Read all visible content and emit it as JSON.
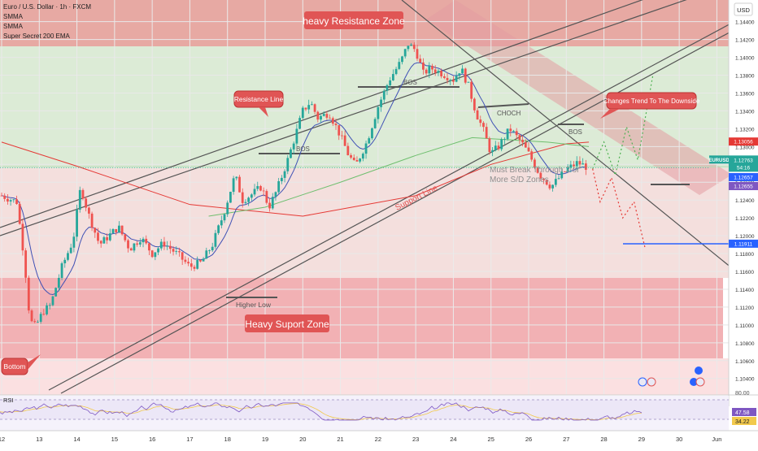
{
  "header": {
    "symbol": "Euro / U.S. Dollar · 1h · FXCM",
    "indicators": [
      "SMMA",
      "SMMA",
      "Super Secret 200 EMA"
    ],
    "currency": "USD"
  },
  "rsi": {
    "label": "RSI",
    "scale": [
      "80.00",
      "47.58",
      "34.22"
    ],
    "values": [
      47.58,
      34.22
    ],
    "colors": {
      "rsi": "#7e57c2",
      "ma": "#f2c94c"
    }
  },
  "annotations": {
    "resistance_zone": "heavy Resistance Zone",
    "support_zone": "Heavy Suport Zone",
    "resistance_line": "Resistance Line",
    "support_line": "Support Line",
    "bottom": "Bottom",
    "higher_low": "Higher Low",
    "bos": "BOS",
    "choch": "CHOCH",
    "trend_change": "Changes Trend To The Downside",
    "must_break_1": "Must Break Through 2 or",
    "must_break_2": "More S/D Zones"
  },
  "price_tags": {
    "ema200": {
      "text": "1.13056",
      "value": 1.13056,
      "color": "#e53935"
    },
    "eurusd_label": "EURUSD",
    "last": {
      "text": "1.12763",
      "value": 1.12763,
      "color": "#26a69a"
    },
    "countdown": "54:16",
    "smma_a": {
      "text": "1.12657",
      "value": 1.12657,
      "color": "#2962ff"
    },
    "smma_b": {
      "text": "1.12655",
      "value": 1.12655,
      "color": "#7e57c2"
    },
    "support_level": {
      "text": "1.11911",
      "value": 1.11911,
      "color": "#2962ff"
    }
  },
  "chart_data": {
    "type": "candlestick",
    "instrument": "EURUSD",
    "timeframe": "1h",
    "y_ticks": [
      "1.14400",
      "1.14200",
      "1.14000",
      "1.13800",
      "1.13600",
      "1.13400",
      "1.13200",
      "1.13000",
      "1.12800",
      "1.12600",
      "1.12400",
      "1.12200",
      "1.12000",
      "1.11800",
      "1.11600",
      "1.11400",
      "1.11200",
      "1.11000",
      "1.10800",
      "1.10600",
      "1.10400"
    ],
    "ylim": [
      1.1027,
      1.1457
    ],
    "x_ticks": [
      "12",
      "13",
      "14",
      "15",
      "16",
      "17",
      "18",
      "19",
      "20",
      "21",
      "22",
      "23",
      "24",
      "25",
      "26",
      "27",
      "28",
      "29",
      "30",
      "Jun"
    ],
    "price_path": [
      [
        0,
        1.1245
      ],
      [
        0.4,
        1.1238
      ],
      [
        0.6,
        1.1175
      ],
      [
        0.75,
        1.1105
      ],
      [
        0.9,
        1.1098
      ],
      [
        1.1,
        1.1115
      ],
      [
        1.3,
        1.1122
      ],
      [
        1.6,
        1.1165
      ],
      [
        1.9,
        1.1195
      ],
      [
        2.1,
        1.1255
      ],
      [
        2.3,
        1.1225
      ],
      [
        2.6,
        1.119
      ],
      [
        2.8,
        1.1198
      ],
      [
        3.1,
        1.121
      ],
      [
        3.4,
        1.1185
      ],
      [
        3.7,
        1.1198
      ],
      [
        4.0,
        1.118
      ],
      [
        4.3,
        1.1192
      ],
      [
        4.7,
        1.1178
      ],
      [
        5.0,
        1.1165
      ],
      [
        5.3,
        1.117
      ],
      [
        5.6,
        1.119
      ],
      [
        5.9,
        1.1225
      ],
      [
        6.2,
        1.1268
      ],
      [
        6.4,
        1.124
      ],
      [
        6.6,
        1.1245
      ],
      [
        6.9,
        1.1255
      ],
      [
        7.1,
        1.1232
      ],
      [
        7.3,
        1.125
      ],
      [
        7.6,
        1.1285
      ],
      [
        7.8,
        1.1312
      ],
      [
        8.0,
        1.134
      ],
      [
        8.2,
        1.135
      ],
      [
        8.4,
        1.1332
      ],
      [
        8.7,
        1.1338
      ],
      [
        9.0,
        1.1312
      ],
      [
        9.2,
        1.1292
      ],
      [
        9.4,
        1.1278
      ],
      [
        9.7,
        1.1305
      ],
      [
        10.0,
        1.1345
      ],
      [
        10.3,
        1.1375
      ],
      [
        10.6,
        1.1395
      ],
      [
        10.8,
        1.1415
      ],
      [
        11.0,
        1.1408
      ],
      [
        11.2,
        1.1382
      ],
      [
        11.4,
        1.1388
      ],
      [
        11.7,
        1.1382
      ],
      [
        12.0,
        1.1375
      ],
      [
        12.2,
        1.1388
      ],
      [
        12.4,
        1.1368
      ],
      [
        12.6,
        1.1338
      ],
      [
        12.8,
        1.1318
      ],
      [
        13.0,
        1.1292
      ],
      [
        13.2,
        1.13
      ],
      [
        13.5,
        1.132
      ],
      [
        13.8,
        1.1305
      ],
      [
        14.0,
        1.1292
      ],
      [
        14.3,
        1.1268
      ],
      [
        14.6,
        1.1255
      ],
      [
        15.0,
        1.1274
      ],
      [
        15.3,
        1.1282
      ],
      [
        15.6,
        1.1276
      ]
    ],
    "ema200": [
      [
        0,
        1.1305
      ],
      [
        2,
        1.1278
      ],
      [
        5,
        1.1235
      ],
      [
        8,
        1.1222
      ],
      [
        11,
        1.1245
      ],
      [
        13,
        1.128
      ],
      [
        15,
        1.1303
      ],
      [
        15.6,
        1.1305
      ]
    ],
    "sma_green": [
      [
        5.5,
        1.1222
      ],
      [
        7,
        1.1232
      ],
      [
        9,
        1.126
      ],
      [
        11,
        1.129
      ],
      [
        12.5,
        1.131
      ],
      [
        14.5,
        1.1305
      ],
      [
        15.6,
        1.13
      ]
    ],
    "projections": {
      "bullish": [
        [
          15.7,
          1.1275
        ],
        [
          16.0,
          1.1305
        ],
        [
          16.3,
          1.1268
        ],
        [
          16.6,
          1.1322
        ],
        [
          16.9,
          1.1285
        ],
        [
          17.3,
          1.138
        ]
      ],
      "bearish": [
        [
          15.7,
          1.1275
        ],
        [
          15.9,
          1.1238
        ],
        [
          16.2,
          1.1265
        ],
        [
          16.5,
          1.122
        ],
        [
          16.8,
          1.1238
        ],
        [
          17.1,
          1.1185
        ]
      ]
    },
    "horizontal_levels": {
      "support": 1.11911
    },
    "zones": {
      "resistance": [
        1.1412,
        1.1455
      ],
      "support": [
        1.1067,
        1.1155
      ]
    }
  }
}
